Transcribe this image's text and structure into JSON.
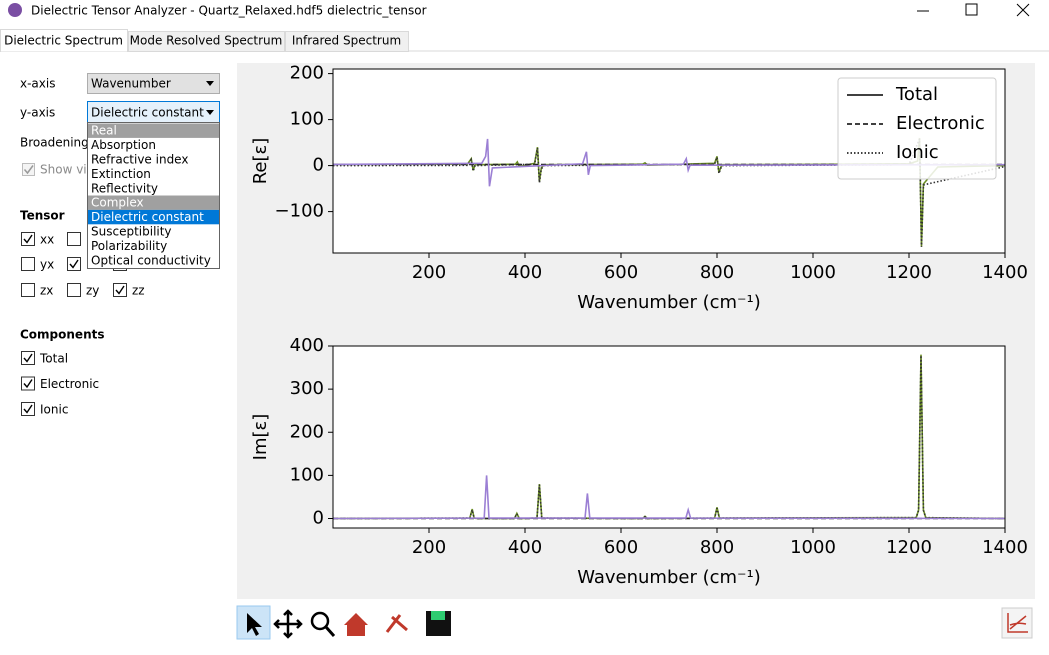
{
  "window": {
    "title": "Dielectric Tensor Analyzer - Quartz_Relaxed.hdf5 dielectric_tensor"
  },
  "tabs": [
    {
      "label": "Dielectric Spectrum",
      "active": true
    },
    {
      "label": "Mode Resolved Spectrum",
      "active": false
    },
    {
      "label": "Infrared Spectrum",
      "active": false
    }
  ],
  "controls": {
    "x_axis": {
      "label": "x-axis",
      "value": "Wavenumber"
    },
    "y_axis": {
      "label": "y-axis",
      "value": "Dielectric constant"
    },
    "broadening": "Broadening",
    "show_visible": "Show vis"
  },
  "dropdown": [
    {
      "label": "Real",
      "kind": "header"
    },
    {
      "label": "Absorption"
    },
    {
      "label": "Refractive index"
    },
    {
      "label": "Extinction"
    },
    {
      "label": "Reflectivity"
    },
    {
      "label": "Complex",
      "kind": "header"
    },
    {
      "label": "Dielectric constant",
      "selected": true
    },
    {
      "label": "Susceptibility"
    },
    {
      "label": "Polarizability"
    },
    {
      "label": "Optical conductivity"
    }
  ],
  "tensor": {
    "title": "Tensor",
    "checks": [
      {
        "label": "xx",
        "checked": true
      },
      {
        "checked": false
      },
      {
        "checked": false
      },
      {
        "label": "yx",
        "checked": false
      },
      {
        "checked": true
      },
      {
        "checked": false
      },
      {
        "label": "zx",
        "checked": false
      },
      {
        "label": "zy",
        "checked": false
      },
      {
        "label": "zz",
        "checked": true
      }
    ]
  },
  "components": {
    "title": "Components",
    "checks": [
      {
        "label": "Total",
        "checked": true
      },
      {
        "label": "Electronic",
        "checked": true
      },
      {
        "label": "Ionic",
        "checked": true
      }
    ]
  },
  "chart_data": [
    {
      "type": "line",
      "xlabel": "Wavenumber (cm⁻¹)",
      "ylabel": "Re[ε]",
      "xlim": [
        0,
        1400
      ],
      "ylim": [
        -190,
        210
      ],
      "xticks": [
        200,
        400,
        600,
        800,
        1000,
        1200,
        1400
      ],
      "yticks": [
        {
          "value": -100,
          "label": "−100"
        },
        0,
        100,
        200
      ],
      "legend": "upper right",
      "legend_color": "#000000",
      "series": [
        {
          "name": "Total",
          "color": "#6b8e23",
          "dash": "solid",
          "x": [
            0,
            280,
            288,
            292,
            296,
            380,
            384,
            388,
            420,
            426,
            430,
            434,
            440,
            645,
            650,
            655,
            795,
            800,
            804,
            810,
            1000,
            1200,
            1218,
            1222,
            1226,
            1230,
            1260,
            1400
          ],
          "values": [
            2.5,
            3,
            15,
            -10,
            2,
            3,
            8,
            -2,
            5,
            40,
            -35,
            -5,
            2,
            3,
            6,
            1,
            5,
            20,
            -15,
            2,
            2.5,
            4,
            10,
            60,
            -175,
            -40,
            -3,
            0
          ]
        },
        {
          "name": "Electronic",
          "color": "#222222",
          "dash": "dashed",
          "x": [
            0,
            1400
          ],
          "values": [
            2.4,
            2.4
          ]
        },
        {
          "name": "Ionic",
          "color": "#333333",
          "dash": "dotted",
          "x": [
            0,
            280,
            288,
            292,
            296,
            420,
            426,
            430,
            434,
            440,
            795,
            800,
            804,
            810,
            1200,
            1222,
            1226,
            1230,
            1400
          ],
          "values": [
            0,
            0.5,
            13,
            -12,
            0,
            3,
            38,
            -37,
            -7,
            0,
            3,
            18,
            -17,
            0,
            2,
            58,
            -177,
            -42,
            -2
          ]
        },
        {
          "name": "zz",
          "color": "#9b7fd4",
          "dash": "solid",
          "legend": false,
          "x": [
            0,
            310,
            318,
            322,
            326,
            332,
            520,
            528,
            532,
            536,
            730,
            736,
            740,
            744,
            1400
          ],
          "values": [
            2.5,
            5,
            20,
            58,
            -45,
            -5,
            4,
            30,
            -20,
            0,
            3,
            15,
            -10,
            1,
            2
          ]
        }
      ]
    },
    {
      "type": "line",
      "xlabel": "Wavenumber (cm⁻¹)",
      "ylabel": "Im[ε]",
      "xlim": [
        0,
        1400
      ],
      "ylim": [
        -22,
        400
      ],
      "xticks": [
        200,
        400,
        600,
        800,
        1000,
        1200,
        1400
      ],
      "yticks": [
        0,
        100,
        200,
        300,
        400
      ],
      "series": [
        {
          "name": "Total",
          "color": "#6b8e23",
          "dash": "solid",
          "x": [
            0,
            285,
            290,
            294,
            300,
            378,
            383,
            388,
            425,
            430,
            435,
            645,
            650,
            655,
            795,
            800,
            805,
            1215,
            1220,
            1225,
            1230,
            1235,
            1400
          ],
          "values": [
            0,
            1,
            22,
            1,
            0,
            0,
            12,
            0,
            1,
            80,
            1,
            0,
            5,
            0,
            1,
            26,
            1,
            2,
            20,
            380,
            20,
            2,
            0
          ]
        },
        {
          "name": "Electronic",
          "color": "#222222",
          "dash": "dashed",
          "x": [
            0,
            1400
          ],
          "values": [
            0,
            0
          ]
        },
        {
          "name": "Ionic",
          "color": "#333333",
          "dash": "dotted",
          "x": [
            0,
            285,
            290,
            294,
            300,
            378,
            383,
            388,
            425,
            430,
            435,
            645,
            650,
            655,
            795,
            800,
            805,
            1215,
            1220,
            1225,
            1230,
            1235,
            1400
          ],
          "values": [
            0,
            1,
            20,
            1,
            0,
            0,
            11,
            0,
            1,
            78,
            1,
            0,
            4,
            0,
            1,
            24,
            1,
            2,
            19,
            378,
            19,
            2,
            0
          ]
        },
        {
          "name": "zz",
          "color": "#9b7fd4",
          "dash": "solid",
          "legend": false,
          "x": [
            0,
            315,
            320,
            325,
            525,
            530,
            535,
            735,
            740,
            745,
            1400
          ],
          "values": [
            0,
            1,
            100,
            1,
            1,
            58,
            1,
            1,
            20,
            1,
            0
          ]
        }
      ]
    }
  ]
}
